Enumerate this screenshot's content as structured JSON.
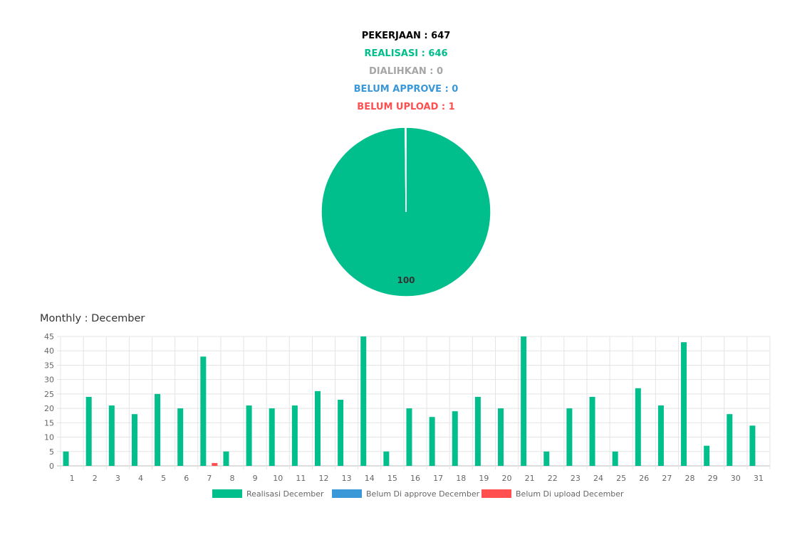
{
  "summary": {
    "pekerjaan": {
      "text": "PEKERJAAN : 647",
      "color": "#000000"
    },
    "realisasi": {
      "text": "REALISASI : 646",
      "color": "#00bf8c"
    },
    "dialihkan": {
      "text": "DIALIHKAN : 0",
      "color": "#a6a6a6"
    },
    "belum_approve": {
      "text": "BELUM APPROVE : 0",
      "color": "#3a98d8"
    },
    "belum_upload": {
      "text": "BELUM UPLOAD : 1",
      "color": "#ff4f4f"
    }
  },
  "monthly_title": "Monthly : December",
  "chart_data": [
    {
      "type": "pie",
      "slices": [
        {
          "label": "Realisasi",
          "value": 646,
          "color": "#00bf8c"
        },
        {
          "label": "Belum Upload",
          "value": 1,
          "color": "#ff4f4f"
        }
      ],
      "data_labels": [
        "100"
      ]
    },
    {
      "type": "bar",
      "title": "Monthly : December",
      "categories": [
        "1",
        "2",
        "3",
        "4",
        "5",
        "6",
        "7",
        "8",
        "9",
        "10",
        "11",
        "12",
        "13",
        "14",
        "15",
        "16",
        "17",
        "18",
        "19",
        "20",
        "21",
        "22",
        "23",
        "24",
        "25",
        "26",
        "27",
        "28",
        "29",
        "30",
        "31"
      ],
      "series": [
        {
          "name": "Realisasi December",
          "color": "#00bf8c",
          "values": [
            5,
            24,
            21,
            18,
            25,
            20,
            38,
            5,
            21,
            20,
            21,
            26,
            23,
            45,
            5,
            20,
            17,
            19,
            24,
            20,
            45,
            5,
            20,
            24,
            5,
            27,
            21,
            43,
            7,
            18,
            14
          ]
        },
        {
          "name": "Belum Di approve December",
          "color": "#3a98d8",
          "values": [
            0,
            0,
            0,
            0,
            0,
            0,
            0,
            0,
            0,
            0,
            0,
            0,
            0,
            0,
            0,
            0,
            0,
            0,
            0,
            0,
            0,
            0,
            0,
            0,
            0,
            0,
            0,
            0,
            0,
            0,
            0
          ]
        },
        {
          "name": "Belum Di upload December",
          "color": "#ff4f4f",
          "values": [
            0,
            0,
            0,
            0,
            0,
            0,
            1,
            0,
            0,
            0,
            0,
            0,
            0,
            0,
            0,
            0,
            0,
            0,
            0,
            0,
            0,
            0,
            0,
            0,
            0,
            0,
            0,
            0,
            0,
            0,
            0
          ]
        }
      ],
      "yticks": [
        0,
        5,
        10,
        15,
        20,
        25,
        30,
        35,
        40,
        45
      ],
      "ylim": [
        0,
        45
      ],
      "grid": true,
      "legend_position": "bottom"
    }
  ]
}
